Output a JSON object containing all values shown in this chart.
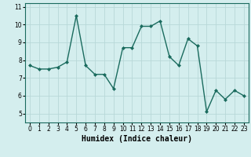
{
  "x": [
    0,
    1,
    2,
    3,
    4,
    5,
    6,
    7,
    8,
    9,
    10,
    11,
    12,
    13,
    14,
    15,
    16,
    17,
    18,
    19,
    20,
    21,
    22,
    23
  ],
  "y": [
    7.7,
    7.5,
    7.5,
    7.6,
    7.9,
    10.5,
    7.7,
    7.2,
    7.2,
    6.4,
    8.7,
    8.7,
    9.9,
    9.9,
    10.2,
    8.2,
    7.7,
    9.2,
    8.8,
    5.1,
    6.3,
    5.8,
    6.3,
    6.0
  ],
  "line_color": "#1a6b5e",
  "marker": "D",
  "markersize": 2.0,
  "linewidth": 1.0,
  "xlabel": "Humidex (Indice chaleur)",
  "xlabel_fontsize": 7,
  "xlabel_bold": true,
  "ylim": [
    4.5,
    11.2
  ],
  "xlim": [
    -0.5,
    23.5
  ],
  "yticks": [
    5,
    6,
    7,
    8,
    9,
    10,
    11
  ],
  "xticks": [
    0,
    1,
    2,
    3,
    4,
    5,
    6,
    7,
    8,
    9,
    10,
    11,
    12,
    13,
    14,
    15,
    16,
    17,
    18,
    19,
    20,
    21,
    22,
    23
  ],
  "grid_color": "#b8d8d8",
  "background_color": "#d4eeee",
  "tick_fontsize": 5.5,
  "spine_color": "#1a6b5e"
}
